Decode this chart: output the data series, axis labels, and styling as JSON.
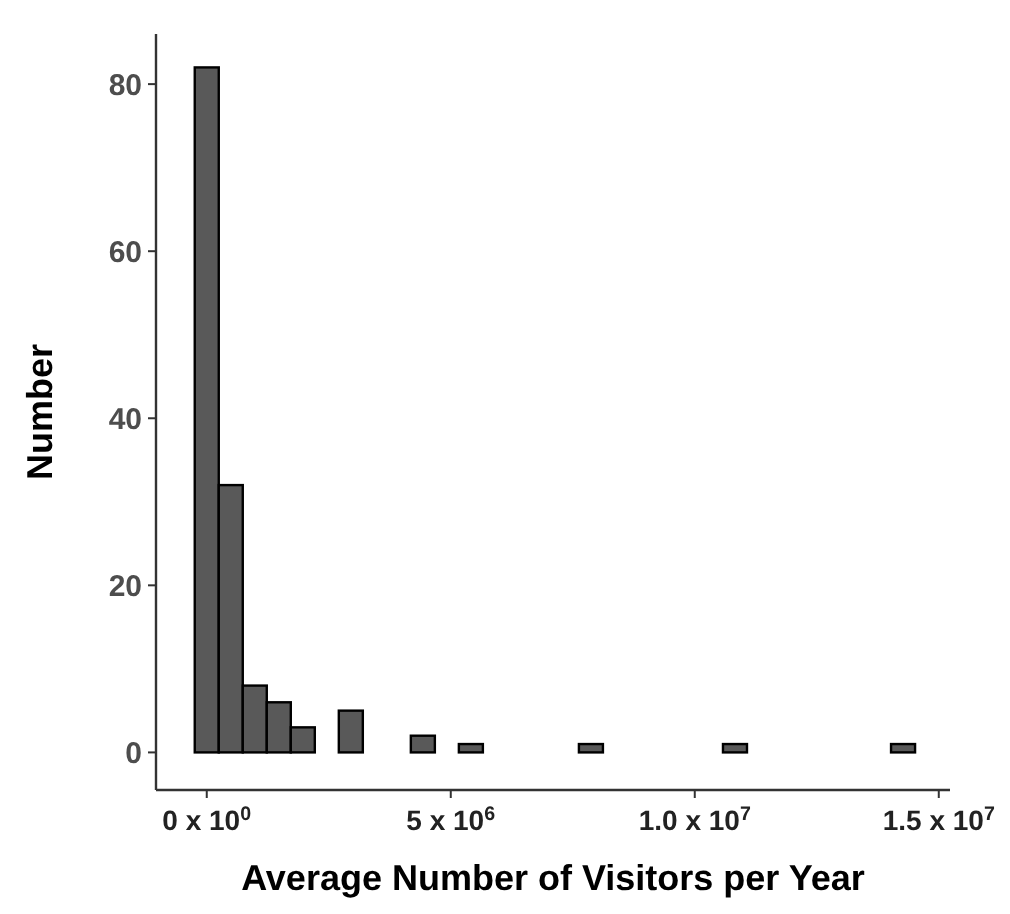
{
  "chart_data": {
    "type": "histogram",
    "xlabel": "Average Number of Visitors per Year",
    "ylabel": "Number",
    "bins": [
      -246000,
      246000,
      738000,
      1230000,
      1722000,
      2214000,
      2706000,
      3198000,
      3690000,
      4182000,
      4674000,
      5166000,
      5658000,
      6150000,
      6642000,
      7134000,
      7626000,
      8118000,
      8610000,
      9102000,
      9594000,
      10086000,
      10578000,
      11070000,
      11562000,
      12054000,
      12546000,
      13038000,
      13530000,
      14022000,
      14514000
    ],
    "values": [
      82,
      32,
      8,
      6,
      3,
      0,
      5,
      0,
      0,
      2,
      0,
      1,
      0,
      0,
      0,
      0,
      1,
      0,
      0,
      0,
      0,
      0,
      1,
      0,
      0,
      0,
      0,
      0,
      0,
      1
    ],
    "color": "#595959",
    "xlim": [
      -1040000,
      15230000
    ],
    "ylim": [
      -4.5,
      86
    ],
    "xticks": [
      {
        "value": 0,
        "label": "0 x 10$^{0}$"
      },
      {
        "value": 5000000,
        "label": "5 x 10$^{6}$"
      },
      {
        "value": 10000000,
        "label": "1.0 x 10$^{7}$"
      },
      {
        "value": 15000000,
        "label": "1.5 x 10$^{7}$"
      }
    ],
    "yticks": [
      0,
      20,
      40,
      60,
      80
    ],
    "grid": false
  }
}
